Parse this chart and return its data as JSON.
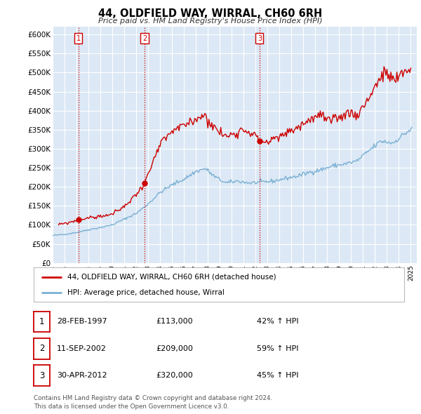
{
  "title": "44, OLDFIELD WAY, WIRRAL, CH60 6RH",
  "subtitle": "Price paid vs. HM Land Registry's House Price Index (HPI)",
  "legend_line1": "44, OLDFIELD WAY, WIRRAL, CH60 6RH (detached house)",
  "legend_line2": "HPI: Average price, detached house, Wirral",
  "sale_color": "#cc0000",
  "hpi_color": "#7ab0d4",
  "plot_bg_color": "#dce8f5",
  "grid_color": "#ffffff",
  "transactions": [
    {
      "label": "1",
      "year": 1997.163,
      "price": 113000
    },
    {
      "label": "2",
      "year": 2002.699,
      "price": 209000
    },
    {
      "label": "3",
      "year": 2012.329,
      "price": 320000
    }
  ],
  "table_rows": [
    {
      "num": "1",
      "date": "28-FEB-1997",
      "price": "£113,000",
      "info": "42% ↑ HPI"
    },
    {
      "num": "2",
      "date": "11-SEP-2002",
      "price": "£209,000",
      "info": "59% ↑ HPI"
    },
    {
      "num": "3",
      "date": "30-APR-2012",
      "price": "£320,000",
      "info": "45% ↑ HPI"
    }
  ],
  "footer": "Contains HM Land Registry data © Crown copyright and database right 2024.\nThis data is licensed under the Open Government Licence v3.0.",
  "ylim": [
    0,
    620000
  ],
  "yticks": [
    0,
    50000,
    100000,
    150000,
    200000,
    250000,
    300000,
    350000,
    400000,
    450000,
    500000,
    550000,
    600000
  ],
  "ytick_labels": [
    "£0",
    "£50K",
    "£100K",
    "£150K",
    "£200K",
    "£250K",
    "£300K",
    "£350K",
    "£400K",
    "£450K",
    "£500K",
    "£550K",
    "£600K"
  ],
  "xmin": 1995.0,
  "xmax": 2025.5
}
